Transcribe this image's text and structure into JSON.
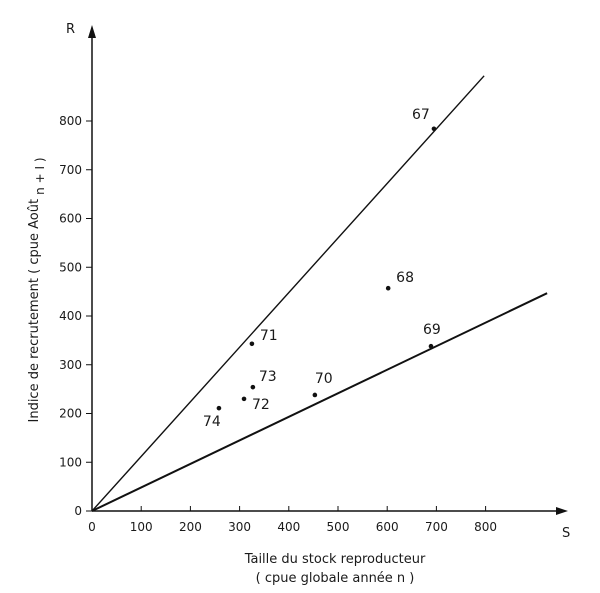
{
  "chart_data": {
    "type": "scatter",
    "title": "",
    "xlabel": "Taille du stock reproducteur",
    "xlabel_line2": "( cpue globale année n )",
    "ylabel": "Indice de recrutement  ( cpue Août",
    "ylabel_sub": "n + I )",
    "x_axis_letter": "S",
    "y_axis_letter": "R",
    "xlim": [
      0,
      950
    ],
    "ylim": [
      0,
      900
    ],
    "x_ticks": [
      "0",
      "100",
      "200",
      "300",
      "400",
      "500",
      "600",
      "700",
      "800"
    ],
    "y_ticks": [
      "0",
      "100",
      "200",
      "300",
      "400",
      "500",
      "600",
      "700",
      "800"
    ],
    "grid": false,
    "points": [
      {
        "label": "67",
        "x": 695,
        "y": 784
      },
      {
        "label": "68",
        "x": 602,
        "y": 457
      },
      {
        "label": "69",
        "x": 689,
        "y": 338
      },
      {
        "label": "70",
        "x": 453,
        "y": 238
      },
      {
        "label": "71",
        "x": 325,
        "y": 343
      },
      {
        "label": "72",
        "x": 309,
        "y": 230
      },
      {
        "label": "73",
        "x": 327,
        "y": 254
      },
      {
        "label": "74",
        "x": 258,
        "y": 211
      }
    ],
    "lines": [
      {
        "slope": 1.12,
        "x_end": 797
      },
      {
        "slope": 0.483,
        "x_end": 925
      }
    ]
  }
}
